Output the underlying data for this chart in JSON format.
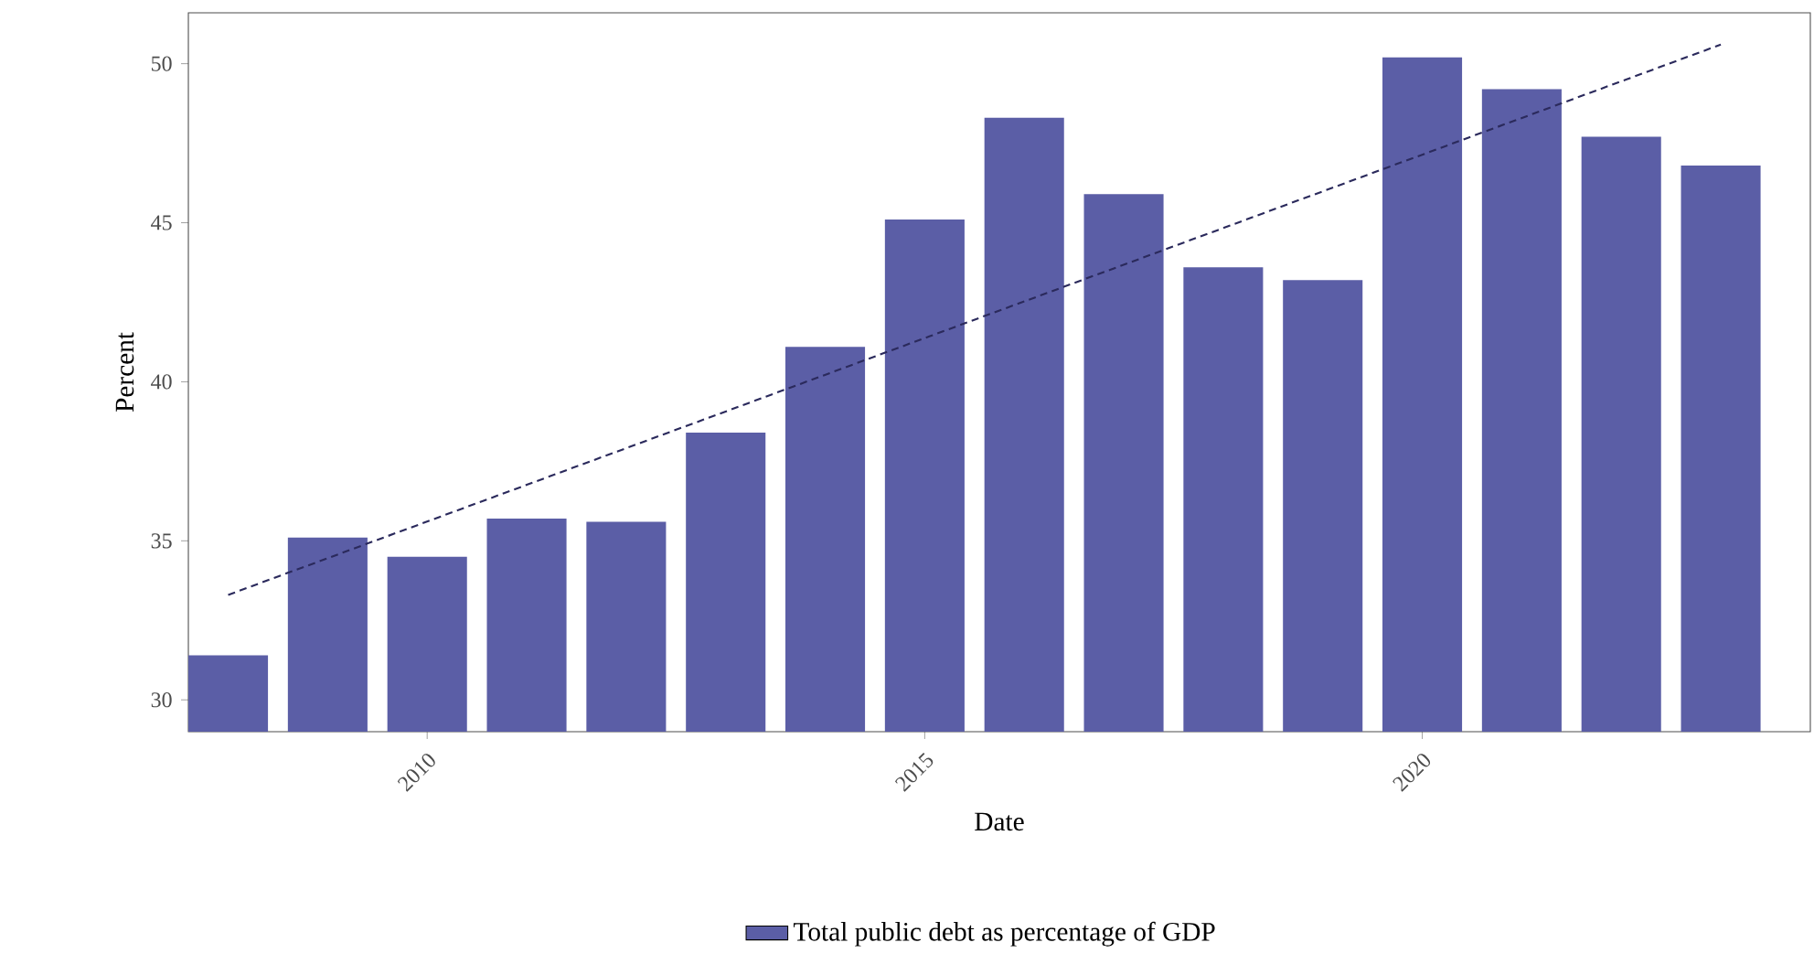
{
  "chart_data": {
    "type": "bar",
    "xlabel": "Date",
    "ylabel": "Percent",
    "x": [
      2008,
      2009,
      2010,
      2011,
      2012,
      2013,
      2014,
      2015,
      2016,
      2017,
      2018,
      2019,
      2020,
      2021,
      2022,
      2023
    ],
    "series": [
      {
        "name": "Total public debt as percentage of GDP",
        "color": "#5b5ea6",
        "values": [
          31.4,
          35.1,
          34.5,
          35.7,
          35.6,
          38.4,
          41.1,
          45.1,
          48.3,
          45.9,
          43.6,
          43.2,
          50.2,
          49.2,
          47.7,
          46.8
        ]
      },
      {
        "type": "line",
        "color": "#2b2a5c",
        "line_style": "dashed",
        "x": [
          2008,
          2023
        ],
        "values": [
          33.3,
          50.6
        ]
      }
    ],
    "xlim": [
      2007.6,
      2023.9
    ],
    "ylim": [
      29,
      51.6
    ],
    "xticks": [
      2010,
      2015,
      2020
    ],
    "yticks": [
      30,
      35,
      40,
      45,
      50
    ],
    "legend": "bottom"
  }
}
